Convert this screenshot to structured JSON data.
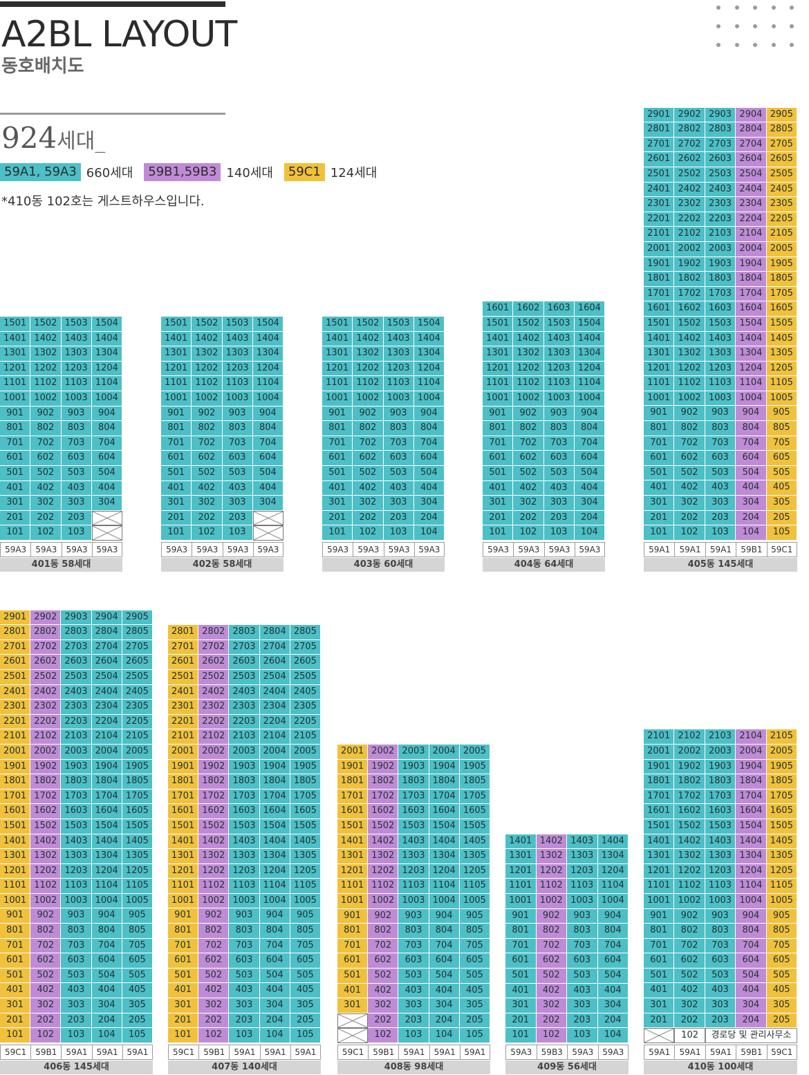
{
  "header": {
    "title": "A2BL LAYOUT",
    "subtitle": "동호배치도",
    "total_count": "924",
    "total_unit": "세대_",
    "note": "*410동 102호는 게스트하우스입니다."
  },
  "colors": {
    "a": "#4cbfc7",
    "b": "#c08bd6",
    "c": "#f1c13c"
  },
  "legend": [
    {
      "label": "59A1, 59A3",
      "count": "660세대",
      "color": "#4cbfc7"
    },
    {
      "label": "59B1,59B3",
      "count": "140세대",
      "color": "#c08bd6"
    },
    {
      "label": "59C1",
      "count": "124세대",
      "color": "#f1c13c"
    }
  ],
  "buildings": [
    {
      "id": "401",
      "label": "401동 58세대",
      "units": 4,
      "floors": 15,
      "types": [
        "59A3",
        "59A3",
        "59A3",
        "59A3"
      ],
      "colors": [
        "a",
        "a",
        "a",
        "a"
      ],
      "cut_units": {
        "1": [
          4
        ],
        "2": [
          4
        ]
      }
    },
    {
      "id": "402",
      "label": "402동 58세대",
      "units": 4,
      "floors": 15,
      "types": [
        "59A3",
        "59A3",
        "59A3",
        "59A3"
      ],
      "colors": [
        "a",
        "a",
        "a",
        "a"
      ],
      "cut_units": {
        "1": [
          4
        ],
        "2": [
          4
        ]
      }
    },
    {
      "id": "403",
      "label": "403동 60세대",
      "units": 4,
      "floors": 15,
      "types": [
        "59A3",
        "59A3",
        "59A3",
        "59A3"
      ],
      "colors": [
        "a",
        "a",
        "a",
        "a"
      ]
    },
    {
      "id": "404",
      "label": "404동 64세대",
      "units": 4,
      "floors": 16,
      "types": [
        "59A3",
        "59A3",
        "59A3",
        "59A3"
      ],
      "colors": [
        "a",
        "a",
        "a",
        "a"
      ]
    },
    {
      "id": "405",
      "label": "405동 145세대",
      "units": 5,
      "floors": 29,
      "types": [
        "59A1",
        "59A1",
        "59A1",
        "59B1",
        "59C1"
      ],
      "colors": [
        "a",
        "a",
        "a",
        "b",
        "c"
      ]
    },
    {
      "id": "406",
      "label": "406동 145세대",
      "units": 5,
      "floors": 29,
      "types": [
        "59C1",
        "59B1",
        "59A1",
        "59A1",
        "59A1"
      ],
      "colors": [
        "c",
        "b",
        "a",
        "a",
        "a"
      ]
    },
    {
      "id": "407",
      "label": "407동 140세대",
      "units": 5,
      "floors": 28,
      "types": [
        "59C1",
        "59B1",
        "59A1",
        "59A1",
        "59A1"
      ],
      "colors": [
        "c",
        "b",
        "a",
        "a",
        "a"
      ]
    },
    {
      "id": "408",
      "label": "408동 98세대",
      "units": 5,
      "floors": 20,
      "types": [
        "59C1",
        "59B1",
        "59A1",
        "59A1",
        "59A1"
      ],
      "colors": [
        "c",
        "b",
        "a",
        "a",
        "a"
      ],
      "cut_units": {
        "1": [
          1
        ],
        "2": [
          1
        ]
      }
    },
    {
      "id": "409",
      "label": "409동 56세대",
      "units": 4,
      "floors": 14,
      "types": [
        "59A3",
        "59B3",
        "59A3",
        "59A3"
      ],
      "colors": [
        "a",
        "b",
        "a",
        "a"
      ]
    },
    {
      "id": "410",
      "label": "410동 100세대",
      "units": 5,
      "floors": 21,
      "types": [
        "59A1",
        "59A1",
        "59A1",
        "59B1",
        "59C1"
      ],
      "colors": [
        "a",
        "a",
        "a",
        "b",
        "c"
      ],
      "cut_units": {
        "1": [
          1
        ]
      },
      "plain_units": {
        "1": [
          2
        ]
      },
      "merged": {
        "floor": 1,
        "unit": 3,
        "span": 3,
        "text": "경로당 및 관리사무소"
      }
    }
  ]
}
